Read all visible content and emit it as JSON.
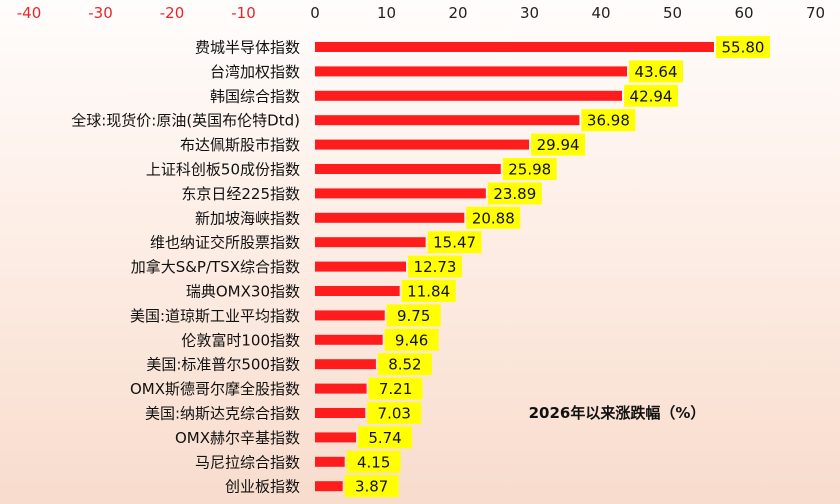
{
  "chart_data": {
    "type": "bar",
    "orientation": "horizontal",
    "title": "2026年以来涨跌幅（%）",
    "xlim": [
      -40,
      70
    ],
    "x_ticks": [
      -40,
      -30,
      -20,
      -10,
      0,
      10,
      20,
      30,
      40,
      50,
      60,
      70
    ],
    "tick_colors": {
      "negative": "#e8242b",
      "positive": "#222222"
    },
    "bar_color": "#ff1c1c",
    "label_background": "#ffff00",
    "categories": [
      "费城半导体指数",
      "台湾加权指数",
      "韩国综合指数",
      "全球:现货价:原油(英国布伦特Dtd)",
      "布达佩斯股市指数",
      "上证科创板50成份指数",
      "东京日经225指数",
      "新加坡海峡指数",
      "维也纳证交所股票指数",
      "加拿大S&P/TSX综合指数",
      "瑞典OMX30指数",
      "美国:道琼斯工业平均指数",
      "伦敦富时100指数",
      "美国:标准普尔500指数",
      "OMX斯德哥尔摩全股指数",
      "美国:纳斯达克综合指数",
      "OMX赫尔辛基指数",
      "马尼拉综合指数",
      "创业板指数"
    ],
    "values": [
      55.8,
      43.64,
      42.94,
      36.98,
      29.94,
      25.98,
      23.89,
      20.88,
      15.47,
      12.73,
      11.84,
      9.75,
      9.46,
      8.52,
      7.21,
      7.03,
      5.74,
      4.15,
      3.87
    ],
    "value_labels": [
      "55.80",
      "43.64",
      "42.94",
      "36.98",
      "29.94",
      "25.98",
      "23.89",
      "20.88",
      "15.47",
      "12.73",
      "11.84",
      "9.75",
      "9.46",
      "8.52",
      "7.21",
      "7.03",
      "5.74",
      "4.15",
      "3.87"
    ]
  }
}
